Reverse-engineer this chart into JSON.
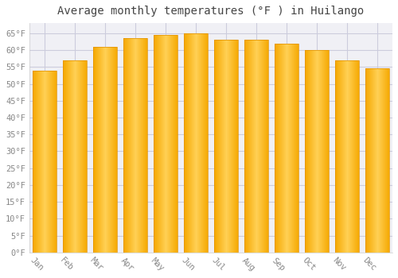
{
  "title": "Average monthly temperatures (°F ) in Huilango",
  "months": [
    "Jan",
    "Feb",
    "Mar",
    "Apr",
    "May",
    "Jun",
    "Jul",
    "Aug",
    "Sep",
    "Oct",
    "Nov",
    "Dec"
  ],
  "values": [
    54,
    57,
    61,
    63.5,
    64.5,
    65,
    63,
    63,
    62,
    60,
    57,
    54.5
  ],
  "bar_color_left": "#F5A800",
  "bar_color_center": "#FFD055",
  "bar_color_right": "#F5A800",
  "ylim": [
    0,
    68
  ],
  "ytick_max": 65,
  "ytick_step": 5,
  "background_color": "#ffffff",
  "plot_bg_color": "#f0f0f5",
  "grid_color": "#ccccdd",
  "title_fontsize": 10,
  "tick_fontsize": 7.5,
  "bar_width": 0.78,
  "title_color": "#444444",
  "tick_label_color": "#888888",
  "xlabel_rotation": -45
}
